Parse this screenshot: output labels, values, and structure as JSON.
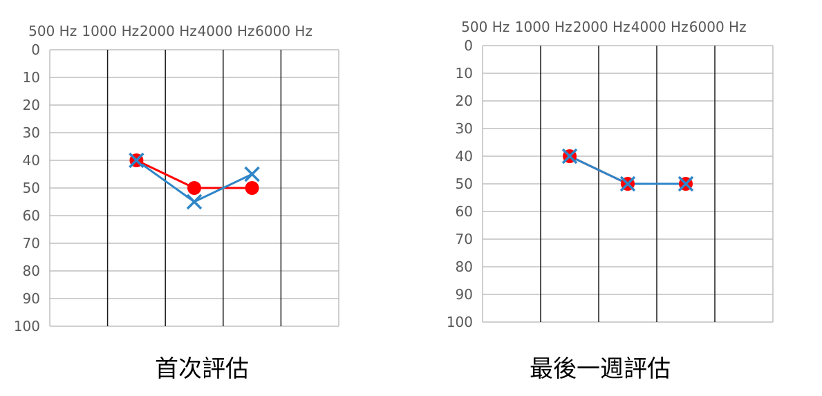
{
  "colors": {
    "red_series": "#ff0000",
    "blue_series": "#2e86c8",
    "vertical_gridline": "#1a1a1a",
    "horizontal_gridline": "#bfbfbf",
    "tick_text": "#595959",
    "caption_text": "#000000"
  },
  "chart_data": [
    {
      "type": "line",
      "title": "",
      "caption": "首次評估",
      "categories": [
        "500 Hz",
        "1000 Hz",
        "2000 Hz",
        "4000 Hz",
        "6000 Hz"
      ],
      "y_ticks": [
        "0",
        "10",
        "20",
        "30",
        "40",
        "50",
        "60",
        "70",
        "80",
        "90",
        "100"
      ],
      "ylim": [
        0,
        100
      ],
      "y_inverted": true,
      "x_axis_position": "top",
      "grid": true,
      "legend": "none",
      "series": [
        {
          "values": [
            null,
            40,
            50,
            50,
            null
          ],
          "color": "#ff0000",
          "marker": "circle"
        },
        {
          "values": [
            null,
            40,
            55,
            45,
            null
          ],
          "color": "#2e86c8",
          "marker": "x"
        }
      ]
    },
    {
      "type": "line",
      "title": "",
      "caption": "最後一週評估",
      "categories": [
        "500 Hz",
        "1000 Hz",
        "2000 Hz",
        "4000 Hz",
        "6000 Hz"
      ],
      "y_ticks": [
        "0",
        "10",
        "20",
        "30",
        "40",
        "50",
        "60",
        "70",
        "80",
        "90",
        "100"
      ],
      "ylim": [
        0,
        100
      ],
      "y_inverted": true,
      "x_axis_position": "top",
      "grid": true,
      "legend": "none",
      "series": [
        {
          "values": [
            null,
            40,
            50,
            50,
            null
          ],
          "color": "#ff0000",
          "marker": "circle"
        },
        {
          "values": [
            null,
            40,
            50,
            50,
            null
          ],
          "color": "#2e86c8",
          "marker": "x"
        }
      ]
    }
  ]
}
